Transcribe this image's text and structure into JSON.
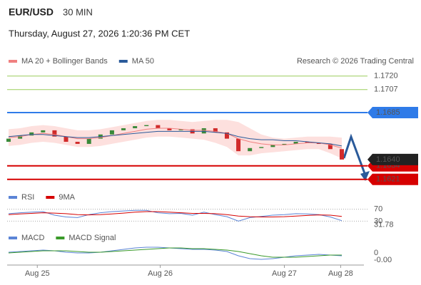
{
  "header": {
    "symbol": "EUR/USD",
    "timeframe": "30 MIN",
    "datetime": "Thursday, August 27, 2026 1:20:36 PM CET",
    "credit": "Research © 2026 Trading Central"
  },
  "chart_data": [
    {
      "type": "candlestick",
      "open": [
        1.1657,
        1.166,
        1.1663,
        1.1666,
        1.1668,
        1.1662,
        1.1657,
        1.1655,
        1.166,
        1.1664,
        1.1668,
        1.167,
        1.1672,
        1.1673,
        1.167,
        1.1668,
        1.1669,
        1.1665,
        1.167,
        1.1666,
        1.166,
        1.1648,
        1.1651,
        1.1652,
        1.1654,
        1.1655,
        1.1657,
        1.1656,
        1.1655,
        1.165
      ],
      "close": [
        1.166,
        1.1663,
        1.1666,
        1.1668,
        1.1662,
        1.1657,
        1.1655,
        1.166,
        1.1664,
        1.1668,
        1.167,
        1.1672,
        1.1673,
        1.167,
        1.1668,
        1.1669,
        1.1665,
        1.167,
        1.1666,
        1.166,
        1.1648,
        1.1651,
        1.1652,
        1.1654,
        1.1655,
        1.1657,
        1.1656,
        1.1655,
        1.165,
        1.164
      ],
      "up_color": "#3a8a3a",
      "down_color": "#d12b2b",
      "series": [
        {
          "name": "MA 20 + Bollinger Bands",
          "color": "#f08080",
          "values": [
            1.1661,
            1.1662,
            1.1664,
            1.1665,
            1.1664,
            1.1662,
            1.166,
            1.166,
            1.1661,
            1.1663,
            1.1665,
            1.1667,
            1.1669,
            1.167,
            1.167,
            1.1669,
            1.1668,
            1.1668,
            1.1667,
            1.1665,
            1.166,
            1.1657,
            1.1655,
            1.1654,
            1.1654,
            1.1655,
            1.1656,
            1.1656,
            1.1654,
            1.1651
          ],
          "band_color": "#fde0de",
          "upper": [
            1.1669,
            1.167,
            1.1672,
            1.1673,
            1.1672,
            1.167,
            1.1668,
            1.1668,
            1.1669,
            1.1671,
            1.1673,
            1.1675,
            1.1677,
            1.1678,
            1.1678,
            1.1677,
            1.1676,
            1.1677,
            1.1678,
            1.1678,
            1.1676,
            1.167,
            1.1664,
            1.1661,
            1.166,
            1.1661,
            1.1662,
            1.1662,
            1.1662,
            1.1661
          ],
          "lower": [
            1.1653,
            1.1654,
            1.1656,
            1.1657,
            1.1656,
            1.1654,
            1.1652,
            1.1652,
            1.1653,
            1.1655,
            1.1657,
            1.1659,
            1.1661,
            1.1662,
            1.1662,
            1.1661,
            1.166,
            1.1659,
            1.1656,
            1.1652,
            1.1644,
            1.1644,
            1.1646,
            1.1647,
            1.1648,
            1.1649,
            1.165,
            1.165,
            1.1646,
            1.1641
          ]
        },
        {
          "name": "MA 50",
          "color": "#2a5a9a",
          "values": [
            1.1662,
            1.1663,
            1.1664,
            1.1664,
            1.1663,
            1.1662,
            1.1661,
            1.1661,
            1.1662,
            1.1663,
            1.1664,
            1.1665,
            1.1666,
            1.1667,
            1.1667,
            1.1667,
            1.1667,
            1.1667,
            1.1666,
            1.1665,
            1.1662,
            1.166,
            1.1659,
            1.1659,
            1.1658,
            1.1658,
            1.1657,
            1.1656,
            1.1655,
            1.1653
          ]
        }
      ],
      "levels": [
        {
          "value": 1.172,
          "label": "1.1720",
          "color": "#9acd5a",
          "style": "text"
        },
        {
          "value": 1.1707,
          "label": "1.1707",
          "color": "#9acd5a",
          "style": "text"
        },
        {
          "value": 1.1685,
          "label": "1.1685",
          "color": "#2f7be8",
          "style": "box"
        },
        {
          "value": 1.1634,
          "label": "1.1634",
          "color": "#d60000",
          "style": "box"
        },
        {
          "value": 1.1621,
          "label": "1.1621",
          "color": "#d60000",
          "style": "box"
        }
      ],
      "last": {
        "value": 1.164,
        "label": "1.1640"
      },
      "ylim": [
        1.1614,
        1.1728
      ]
    },
    {
      "type": "line",
      "series": [
        {
          "name": "RSI",
          "color": "#5b84d6",
          "values": [
            55,
            58,
            60,
            62,
            50,
            44,
            42,
            52,
            58,
            62,
            64,
            66,
            66,
            58,
            55,
            56,
            50,
            60,
            52,
            45,
            30,
            42,
            46,
            50,
            52,
            55,
            54,
            52,
            44,
            31.78
          ]
        },
        {
          "name": "9MA",
          "color": "#d60000",
          "values": [
            52,
            54,
            56,
            58,
            57,
            55,
            52,
            51,
            52,
            54,
            57,
            60,
            62,
            62,
            60,
            58,
            56,
            56,
            55,
            52,
            47,
            45,
            44,
            44,
            45,
            47,
            49,
            51,
            50,
            46
          ]
        }
      ],
      "ylim": [
        0,
        100
      ],
      "yticks": [
        70,
        30
      ],
      "current": 31.78
    },
    {
      "type": "line",
      "series": [
        {
          "name": "MACD",
          "color": "#5b84d6",
          "values": [
            0.0001,
            0.0002,
            0.0003,
            0.0004,
            0.0003,
            0.0001,
            0,
            0,
            0.0001,
            0.0003,
            0.0005,
            0.0007,
            0.0008,
            0.0008,
            0.0007,
            0.0006,
            0.0005,
            0.0005,
            0.0004,
            0.0002,
            -0.0004,
            -0.0008,
            -0.0009,
            -0.0008,
            -0.0006,
            -0.0004,
            -0.0003,
            -0.0002,
            -0.0003,
            -0.0004
          ]
        },
        {
          "name": "MACD Signal",
          "color": "#3a9a2a",
          "values": [
            0,
            0.0001,
            0.0002,
            0.0003,
            0.0003,
            0.0003,
            0.0002,
            0.0001,
            0.0001,
            0.0002,
            0.0003,
            0.0004,
            0.0005,
            0.0006,
            0.0007,
            0.0007,
            0.0006,
            0.0006,
            0.0005,
            0.0004,
            0.0002,
            -0.0001,
            -0.0004,
            -0.0006,
            -0.0006,
            -0.0006,
            -0.0005,
            -0.0004,
            -0.0003,
            -0.0003
          ]
        }
      ],
      "ylim": [
        -0.0016,
        0.0016
      ],
      "yticks": [
        0
      ],
      "current": {
        "value": -0.0004,
        "label": "-0.00"
      },
      "xlim": [
        0,
        29
      ],
      "xticks": [
        {
          "value": 2.5,
          "label": "Aug 25"
        },
        {
          "value": 13.2,
          "label": "Aug 26"
        },
        {
          "value": 24,
          "label": "Aug 27"
        },
        {
          "value": 28.9,
          "label": "Aug 28"
        }
      ]
    }
  ]
}
